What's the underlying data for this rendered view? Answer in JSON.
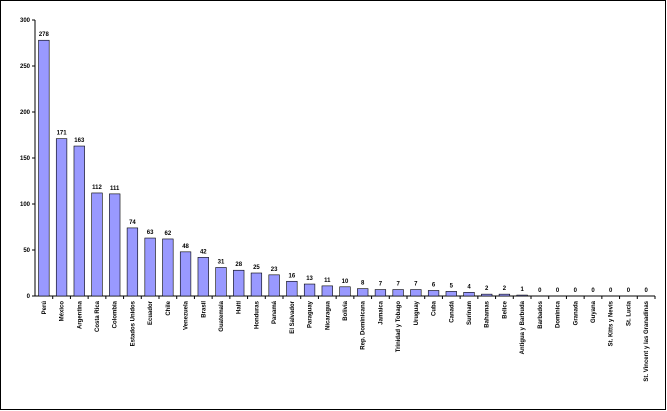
{
  "chart_data": {
    "type": "bar",
    "categories": [
      "Perú",
      "México",
      "Argentina",
      "Costa Rica",
      "Colombia",
      "Estados Unidos",
      "Ecuador",
      "Chile",
      "Venezuela",
      "Brasil",
      "Guatemala",
      "Haití",
      "Honduras",
      "Panamá",
      "El Salvador",
      "Paraguay",
      "Nicaragua",
      "Bolivia",
      "Rep. Dominicana",
      "Jamaica",
      "Trinidad y Tobago",
      "Uruguay",
      "Cuba",
      "Canadá",
      "Surinam",
      "Bahamas",
      "Belice",
      "Antigua y Barbuda",
      "Barbados",
      "Dominica",
      "Granada",
      "Guyana",
      "St. Kitts y Nevis",
      "St. Lucia",
      "St. Vincent y las Granadinas"
    ],
    "values": [
      278,
      171,
      163,
      112,
      111,
      74,
      63,
      62,
      48,
      42,
      31,
      28,
      25,
      23,
      16,
      13,
      11,
      10,
      8,
      7,
      7,
      7,
      6,
      5,
      4,
      2,
      2,
      1,
      0,
      0,
      0,
      0,
      0,
      0,
      0
    ],
    "color": "#9999ff",
    "ylim": [
      0,
      300
    ],
    "yticks": [
      0,
      50,
      100,
      150,
      200,
      250,
      300
    ],
    "grid": false
  }
}
